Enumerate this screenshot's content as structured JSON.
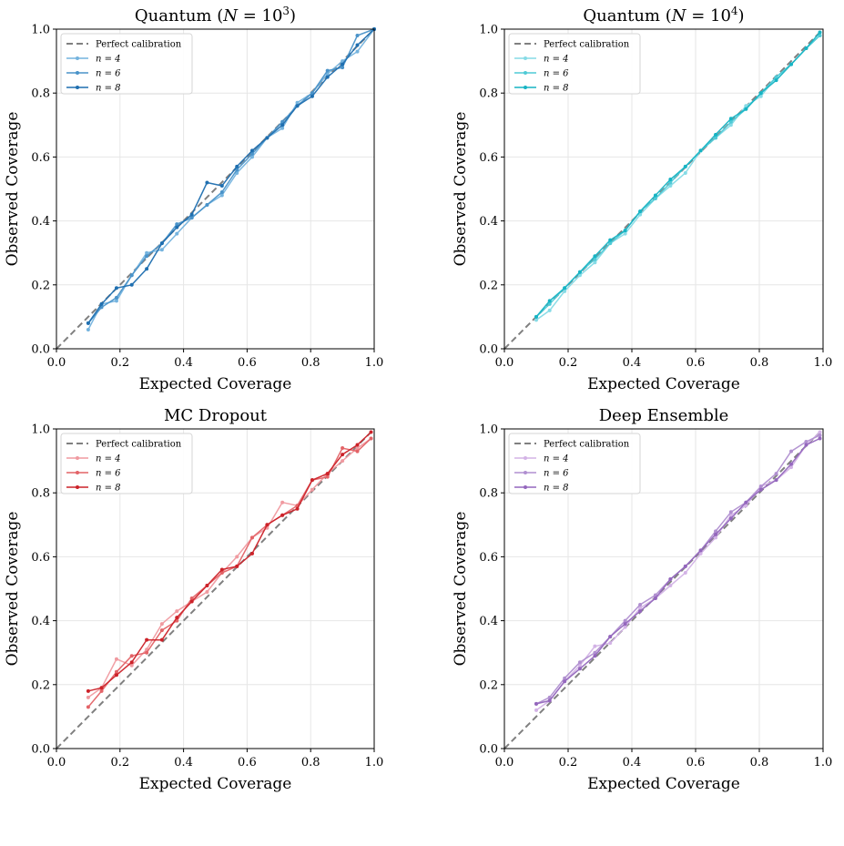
{
  "colors": {
    "perfect": "#808080",
    "quantum1": [
      "#74b3de",
      "#4a93c9",
      "#1f6fb0"
    ],
    "quantum2": [
      "#86dbe6",
      "#4fcad6",
      "#17b4c4"
    ],
    "dropout": [
      "#f09aa0",
      "#e36367",
      "#cc2229"
    ],
    "ensemble": [
      "#d3b3e6",
      "#b08fd0",
      "#9467bd"
    ]
  },
  "chart_data": [
    {
      "type": "line",
      "title": "Quantum (N = 10^3)",
      "title_main": "Quantum (",
      "title_var": "N",
      "title_eq": " = 10",
      "title_exp": "3",
      "title_close": ")",
      "xlabel": "Expected Coverage",
      "ylabel": "Observed Coverage",
      "xlim": [
        0,
        1
      ],
      "ylim": [
        0,
        1
      ],
      "xticks": [
        "0.0",
        "0.2",
        "0.4",
        "0.6",
        "0.8",
        "1.0"
      ],
      "yticks": [
        "0.0",
        "0.2",
        "0.4",
        "0.6",
        "0.8",
        "1.0"
      ],
      "grid": true,
      "legend_position": "upper left",
      "palette": "quantum1",
      "series": [
        {
          "name": "Perfect calibration",
          "x": [
            0,
            1
          ],
          "y": [
            0,
            1
          ]
        },
        {
          "name": "n = 4",
          "x": [
            0.1,
            0.142,
            0.189,
            0.237,
            0.284,
            0.332,
            0.379,
            0.426,
            0.474,
            0.521,
            0.568,
            0.616,
            0.663,
            0.711,
            0.758,
            0.805,
            0.853,
            0.9,
            0.947,
            1.0
          ],
          "y": [
            0.06,
            0.14,
            0.15,
            0.23,
            0.3,
            0.31,
            0.36,
            0.41,
            0.45,
            0.48,
            0.55,
            0.6,
            0.66,
            0.69,
            0.77,
            0.8,
            0.86,
            0.9,
            0.93,
            1.0
          ]
        },
        {
          "name": "n = 6",
          "x": [
            0.1,
            0.142,
            0.189,
            0.237,
            0.284,
            0.332,
            0.379,
            0.426,
            0.474,
            0.521,
            0.568,
            0.616,
            0.663,
            0.711,
            0.758,
            0.805,
            0.853,
            0.9,
            0.947,
            1.0
          ],
          "y": [
            0.08,
            0.13,
            0.16,
            0.23,
            0.29,
            0.33,
            0.39,
            0.41,
            0.45,
            0.49,
            0.56,
            0.61,
            0.66,
            0.71,
            0.76,
            0.8,
            0.87,
            0.88,
            0.98,
            1.0
          ]
        },
        {
          "name": "n = 8",
          "x": [
            0.1,
            0.142,
            0.189,
            0.237,
            0.284,
            0.332,
            0.379,
            0.426,
            0.474,
            0.521,
            0.568,
            0.616,
            0.663,
            0.711,
            0.758,
            0.805,
            0.853,
            0.9,
            0.947,
            1.0
          ],
          "y": [
            0.08,
            0.14,
            0.19,
            0.2,
            0.25,
            0.33,
            0.38,
            0.42,
            0.52,
            0.51,
            0.57,
            0.62,
            0.66,
            0.7,
            0.76,
            0.79,
            0.85,
            0.89,
            0.95,
            1.0
          ]
        }
      ]
    },
    {
      "type": "line",
      "title": "Quantum (N = 10^4)",
      "title_main": "Quantum (",
      "title_var": "N",
      "title_eq": " = 10",
      "title_exp": "4",
      "title_close": ")",
      "xlabel": "Expected Coverage",
      "ylabel": "Observed Coverage",
      "xlim": [
        0,
        1
      ],
      "ylim": [
        0,
        1
      ],
      "xticks": [
        "0.0",
        "0.2",
        "0.4",
        "0.6",
        "0.8",
        "1.0"
      ],
      "yticks": [
        "0.0",
        "0.2",
        "0.4",
        "0.6",
        "0.8",
        "1.0"
      ],
      "grid": true,
      "legend_position": "upper left",
      "palette": "quantum2",
      "series": [
        {
          "name": "Perfect calibration",
          "x": [
            0,
            1
          ],
          "y": [
            0,
            1
          ]
        },
        {
          "name": "n = 4",
          "x": [
            0.1,
            0.142,
            0.189,
            0.237,
            0.284,
            0.332,
            0.379,
            0.426,
            0.474,
            0.521,
            0.568,
            0.616,
            0.663,
            0.711,
            0.758,
            0.805,
            0.853,
            0.9,
            0.947,
            0.99
          ],
          "y": [
            0.09,
            0.12,
            0.18,
            0.23,
            0.27,
            0.33,
            0.36,
            0.42,
            0.47,
            0.51,
            0.55,
            0.62,
            0.66,
            0.7,
            0.76,
            0.79,
            0.85,
            0.89,
            0.94,
            0.98
          ]
        },
        {
          "name": "n = 6",
          "x": [
            0.1,
            0.142,
            0.189,
            0.237,
            0.284,
            0.332,
            0.379,
            0.426,
            0.474,
            0.521,
            0.568,
            0.616,
            0.663,
            0.711,
            0.758,
            0.805,
            0.853,
            0.9,
            0.947,
            0.99
          ],
          "y": [
            0.1,
            0.14,
            0.19,
            0.24,
            0.28,
            0.33,
            0.37,
            0.43,
            0.47,
            0.52,
            0.57,
            0.62,
            0.66,
            0.71,
            0.75,
            0.8,
            0.85,
            0.89,
            0.94,
            0.98
          ]
        },
        {
          "name": "n = 8",
          "x": [
            0.1,
            0.142,
            0.189,
            0.237,
            0.284,
            0.332,
            0.379,
            0.426,
            0.474,
            0.521,
            0.568,
            0.616,
            0.663,
            0.711,
            0.758,
            0.805,
            0.853,
            0.9,
            0.947,
            0.99
          ],
          "y": [
            0.1,
            0.15,
            0.19,
            0.24,
            0.29,
            0.34,
            0.37,
            0.43,
            0.48,
            0.53,
            0.57,
            0.62,
            0.67,
            0.72,
            0.75,
            0.8,
            0.84,
            0.89,
            0.94,
            0.99
          ]
        }
      ]
    },
    {
      "type": "line",
      "title": "MC Dropout",
      "title_main": "MC Dropout",
      "title_var": "",
      "title_eq": "",
      "title_exp": "",
      "title_close": "",
      "xlabel": "Expected Coverage",
      "ylabel": "Observed Coverage",
      "xlim": [
        0,
        1
      ],
      "ylim": [
        0,
        1
      ],
      "xticks": [
        "0.0",
        "0.2",
        "0.4",
        "0.6",
        "0.8",
        "1.0"
      ],
      "yticks": [
        "0.0",
        "0.2",
        "0.4",
        "0.6",
        "0.8",
        "1.0"
      ],
      "grid": true,
      "legend_position": "upper left",
      "palette": "dropout",
      "series": [
        {
          "name": "Perfect calibration",
          "x": [
            0,
            1
          ],
          "y": [
            0,
            1
          ]
        },
        {
          "name": "n = 4",
          "x": [
            0.1,
            0.142,
            0.189,
            0.237,
            0.284,
            0.332,
            0.379,
            0.426,
            0.474,
            0.521,
            0.568,
            0.616,
            0.663,
            0.711,
            0.758,
            0.805,
            0.853,
            0.9,
            0.947,
            0.99
          ],
          "y": [
            0.16,
            0.19,
            0.28,
            0.26,
            0.31,
            0.39,
            0.43,
            0.46,
            0.49,
            0.55,
            0.6,
            0.66,
            0.69,
            0.77,
            0.76,
            0.81,
            0.86,
            0.9,
            0.94,
            0.97
          ]
        },
        {
          "name": "n = 6",
          "x": [
            0.1,
            0.142,
            0.189,
            0.237,
            0.284,
            0.332,
            0.379,
            0.426,
            0.474,
            0.521,
            0.568,
            0.616,
            0.663,
            0.711,
            0.758,
            0.805,
            0.853,
            0.9,
            0.947,
            0.99
          ],
          "y": [
            0.13,
            0.18,
            0.24,
            0.29,
            0.3,
            0.37,
            0.4,
            0.47,
            0.51,
            0.55,
            0.57,
            0.66,
            0.7,
            0.73,
            0.76,
            0.84,
            0.85,
            0.94,
            0.93,
            0.97
          ]
        },
        {
          "name": "n = 8",
          "x": [
            0.1,
            0.142,
            0.189,
            0.237,
            0.284,
            0.332,
            0.379,
            0.426,
            0.474,
            0.521,
            0.568,
            0.616,
            0.663,
            0.711,
            0.758,
            0.805,
            0.853,
            0.9,
            0.947,
            0.99
          ],
          "y": [
            0.18,
            0.19,
            0.23,
            0.27,
            0.34,
            0.34,
            0.41,
            0.46,
            0.51,
            0.56,
            0.57,
            0.61,
            0.7,
            0.73,
            0.75,
            0.84,
            0.86,
            0.92,
            0.95,
            0.99
          ]
        }
      ]
    },
    {
      "type": "line",
      "title": "Deep Ensemble",
      "title_main": "Deep Ensemble",
      "title_var": "",
      "title_eq": "",
      "title_exp": "",
      "title_close": "",
      "xlabel": "Expected Coverage",
      "ylabel": "Observed Coverage",
      "xlim": [
        0,
        1
      ],
      "ylim": [
        0,
        1
      ],
      "xticks": [
        "0.0",
        "0.2",
        "0.4",
        "0.6",
        "0.8",
        "1.0"
      ],
      "yticks": [
        "0.0",
        "0.2",
        "0.4",
        "0.6",
        "0.8",
        "1.0"
      ],
      "grid": true,
      "legend_position": "upper left",
      "palette": "ensemble",
      "series": [
        {
          "name": "Perfect calibration",
          "x": [
            0,
            1
          ],
          "y": [
            0,
            1
          ]
        },
        {
          "name": "n = 4",
          "x": [
            0.1,
            0.142,
            0.189,
            0.237,
            0.284,
            0.332,
            0.379,
            0.426,
            0.474,
            0.521,
            0.568,
            0.616,
            0.663,
            0.711,
            0.758,
            0.805,
            0.853,
            0.9,
            0.947,
            0.99
          ],
          "y": [
            0.12,
            0.15,
            0.21,
            0.26,
            0.32,
            0.33,
            0.38,
            0.44,
            0.47,
            0.51,
            0.55,
            0.61,
            0.66,
            0.73,
            0.76,
            0.82,
            0.84,
            0.88,
            0.95,
            0.99
          ]
        },
        {
          "name": "n = 6",
          "x": [
            0.1,
            0.142,
            0.189,
            0.237,
            0.284,
            0.332,
            0.379,
            0.426,
            0.474,
            0.521,
            0.568,
            0.616,
            0.663,
            0.711,
            0.758,
            0.805,
            0.853,
            0.9,
            0.947,
            0.99
          ],
          "y": [
            0.14,
            0.16,
            0.22,
            0.27,
            0.3,
            0.35,
            0.4,
            0.45,
            0.48,
            0.53,
            0.57,
            0.62,
            0.68,
            0.74,
            0.77,
            0.82,
            0.86,
            0.93,
            0.96,
            0.98
          ]
        },
        {
          "name": "n = 8",
          "x": [
            0.1,
            0.142,
            0.189,
            0.237,
            0.284,
            0.332,
            0.379,
            0.426,
            0.474,
            0.521,
            0.568,
            0.616,
            0.663,
            0.711,
            0.758,
            0.805,
            0.853,
            0.9,
            0.947,
            0.99
          ],
          "y": [
            0.14,
            0.15,
            0.21,
            0.25,
            0.29,
            0.35,
            0.39,
            0.43,
            0.47,
            0.53,
            0.57,
            0.62,
            0.67,
            0.72,
            0.77,
            0.81,
            0.84,
            0.89,
            0.95,
            0.97
          ]
        }
      ]
    }
  ]
}
